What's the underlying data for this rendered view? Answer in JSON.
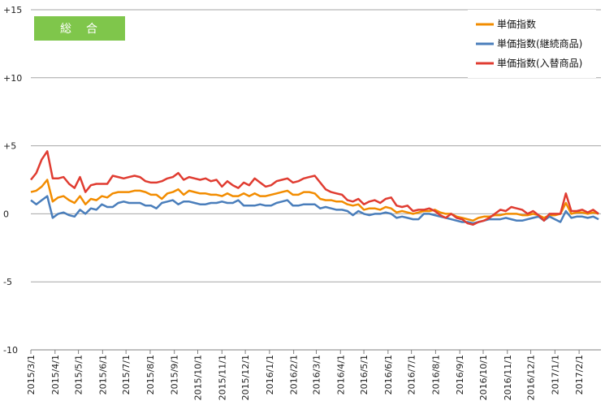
{
  "chart_data": {
    "type": "line",
    "badge": "総　合",
    "ylim": [
      -10,
      15
    ],
    "y_ticks": [
      {
        "value": 15,
        "label": "+15"
      },
      {
        "value": 10,
        "label": "+10"
      },
      {
        "value": 5,
        "label": "+5"
      },
      {
        "value": 0,
        "label": "0"
      },
      {
        "value": -5,
        "label": "-5"
      },
      {
        "value": -10,
        "label": "-10"
      }
    ],
    "x_start": "2015/3/1",
    "x_end": "2017/3/1",
    "x_ticks": [
      "2015/3/1",
      "2015/4/1",
      "2015/5/1",
      "2015/6/1",
      "2015/7/1",
      "2015/8/1",
      "2015/9/1",
      "2015/10/1",
      "2015/11/1",
      "2015/12/1",
      "2016/1/1",
      "2016/2/1",
      "2016/3/1",
      "2016/4/1",
      "2016/5/1",
      "2016/6/1",
      "2016/7/1",
      "2016/8/1",
      "2016/9/1",
      "2016/10/1",
      "2016/11/1",
      "2016/12/1",
      "2017/1/1",
      "2017/2/1"
    ],
    "grid": "horizontal",
    "legend_position": "top-right",
    "x": [
      "2015/3/1",
      "2015/3/8",
      "2015/3/15",
      "2015/3/22",
      "2015/3/29",
      "2015/4/5",
      "2015/4/12",
      "2015/4/19",
      "2015/4/26",
      "2015/5/3",
      "2015/5/10",
      "2015/5/17",
      "2015/5/24",
      "2015/5/31",
      "2015/6/7",
      "2015/6/14",
      "2015/6/21",
      "2015/6/28",
      "2015/7/5",
      "2015/7/12",
      "2015/7/19",
      "2015/7/26",
      "2015/8/2",
      "2015/8/9",
      "2015/8/16",
      "2015/8/23",
      "2015/8/30",
      "2015/9/6",
      "2015/9/13",
      "2015/9/20",
      "2015/9/27",
      "2015/10/4",
      "2015/10/11",
      "2015/10/18",
      "2015/10/25",
      "2015/11/1",
      "2015/11/8",
      "2015/11/15",
      "2015/11/22",
      "2015/11/29",
      "2015/12/6",
      "2015/12/13",
      "2015/12/20",
      "2015/12/27",
      "2016/1/3",
      "2016/1/10",
      "2016/1/17",
      "2016/1/24",
      "2016/1/31",
      "2016/2/7",
      "2016/2/14",
      "2016/2/21",
      "2016/2/28",
      "2016/3/6",
      "2016/3/13",
      "2016/3/20",
      "2016/3/27",
      "2016/4/3",
      "2016/4/10",
      "2016/4/17",
      "2016/4/24",
      "2016/5/1",
      "2016/5/8",
      "2016/5/15",
      "2016/5/22",
      "2016/5/29",
      "2016/6/5",
      "2016/6/12",
      "2016/6/19",
      "2016/6/26",
      "2016/7/3",
      "2016/7/10",
      "2016/7/17",
      "2016/7/24",
      "2016/7/31",
      "2016/8/7",
      "2016/8/14",
      "2016/8/21",
      "2016/8/28",
      "2016/9/4",
      "2016/9/11",
      "2016/9/18",
      "2016/9/25",
      "2016/10/2",
      "2016/10/9",
      "2016/10/16",
      "2016/10/23",
      "2016/10/30",
      "2016/11/6",
      "2016/11/13",
      "2016/11/20",
      "2016/11/27",
      "2016/12/4",
      "2016/12/11",
      "2016/12/18",
      "2016/12/25",
      "2017/1/1",
      "2017/1/8",
      "2017/1/15",
      "2017/1/22",
      "2017/1/29",
      "2017/2/5",
      "2017/2/12",
      "2017/2/19",
      "2017/2/26"
    ],
    "series": [
      {
        "name": "単価指数",
        "color": "#f28c00",
        "values": [
          1.6,
          1.7,
          2.0,
          2.5,
          0.9,
          1.2,
          1.3,
          1.0,
          0.8,
          1.3,
          0.7,
          1.1,
          1.0,
          1.3,
          1.2,
          1.5,
          1.6,
          1.6,
          1.6,
          1.7,
          1.7,
          1.6,
          1.4,
          1.4,
          1.1,
          1.5,
          1.6,
          1.8,
          1.4,
          1.7,
          1.6,
          1.5,
          1.5,
          1.4,
          1.4,
          1.3,
          1.5,
          1.3,
          1.3,
          1.5,
          1.3,
          1.5,
          1.3,
          1.3,
          1.4,
          1.5,
          1.6,
          1.7,
          1.4,
          1.4,
          1.6,
          1.6,
          1.5,
          1.1,
          1.0,
          1.0,
          0.9,
          0.9,
          0.7,
          0.6,
          0.7,
          0.3,
          0.4,
          0.4,
          0.3,
          0.5,
          0.4,
          0.1,
          0.2,
          0.1,
          0.0,
          0.1,
          0.2,
          0.2,
          0.3,
          0.1,
          0.0,
          0.0,
          -0.2,
          -0.3,
          -0.4,
          -0.5,
          -0.3,
          -0.2,
          -0.2,
          -0.1,
          -0.1,
          0.0,
          0.0,
          0.0,
          -0.1,
          -0.1,
          0.0,
          -0.1,
          -0.3,
          -0.1,
          -0.1,
          0.0,
          0.8,
          0.0,
          0.1,
          0.1,
          0.0,
          0.1,
          0.0
        ]
      },
      {
        "name": "単価指数(継続商品)",
        "color": "#4a7ebb",
        "values": [
          1.0,
          0.7,
          1.0,
          1.3,
          -0.3,
          0.0,
          0.1,
          -0.1,
          -0.2,
          0.3,
          0.0,
          0.4,
          0.3,
          0.7,
          0.5,
          0.5,
          0.8,
          0.9,
          0.8,
          0.8,
          0.8,
          0.6,
          0.6,
          0.4,
          0.8,
          0.9,
          1.0,
          0.7,
          0.9,
          0.9,
          0.8,
          0.7,
          0.7,
          0.8,
          0.8,
          0.9,
          0.8,
          0.8,
          1.0,
          0.6,
          0.6,
          0.6,
          0.7,
          0.6,
          0.6,
          0.8,
          0.9,
          1.0,
          0.6,
          0.6,
          0.7,
          0.7,
          0.7,
          0.4,
          0.5,
          0.4,
          0.3,
          0.3,
          0.2,
          -0.1,
          0.2,
          0.0,
          -0.1,
          0.0,
          0.0,
          0.1,
          0.0,
          -0.3,
          -0.2,
          -0.3,
          -0.4,
          -0.4,
          0.0,
          0.0,
          -0.1,
          -0.2,
          -0.3,
          -0.4,
          -0.5,
          -0.6,
          -0.6,
          -0.7,
          -0.6,
          -0.5,
          -0.4,
          -0.4,
          -0.4,
          -0.3,
          -0.4,
          -0.5,
          -0.5,
          -0.4,
          -0.3,
          -0.2,
          -0.5,
          -0.2,
          -0.4,
          -0.6,
          0.2,
          -0.3,
          -0.2,
          -0.2,
          -0.3,
          -0.2,
          -0.4
        ]
      },
      {
        "name": "単価指数(入替商品)",
        "color": "#e03c31",
        "values": [
          2.5,
          3.0,
          4.0,
          4.6,
          2.6,
          2.6,
          2.7,
          2.2,
          1.9,
          2.7,
          1.6,
          2.1,
          2.2,
          2.2,
          2.2,
          2.8,
          2.7,
          2.6,
          2.7,
          2.8,
          2.7,
          2.4,
          2.3,
          2.3,
          2.4,
          2.6,
          2.7,
          3.0,
          2.5,
          2.7,
          2.6,
          2.5,
          2.6,
          2.4,
          2.5,
          2.0,
          2.4,
          2.1,
          1.9,
          2.3,
          2.1,
          2.6,
          2.3,
          2.0,
          2.1,
          2.4,
          2.5,
          2.6,
          2.3,
          2.4,
          2.6,
          2.7,
          2.8,
          2.3,
          1.8,
          1.6,
          1.5,
          1.4,
          1.0,
          0.9,
          1.1,
          0.7,
          0.9,
          1.0,
          0.8,
          1.1,
          1.2,
          0.6,
          0.5,
          0.6,
          0.2,
          0.3,
          0.3,
          0.4,
          0.2,
          -0.1,
          -0.3,
          0.0,
          -0.3,
          -0.4,
          -0.7,
          -0.8,
          -0.6,
          -0.5,
          -0.3,
          0.0,
          0.3,
          0.2,
          0.5,
          0.4,
          0.3,
          0.0,
          0.2,
          -0.1,
          -0.5,
          0.0,
          0.0,
          0.0,
          1.5,
          0.2,
          0.2,
          0.3,
          0.1,
          0.3,
          0.0
        ]
      }
    ]
  }
}
